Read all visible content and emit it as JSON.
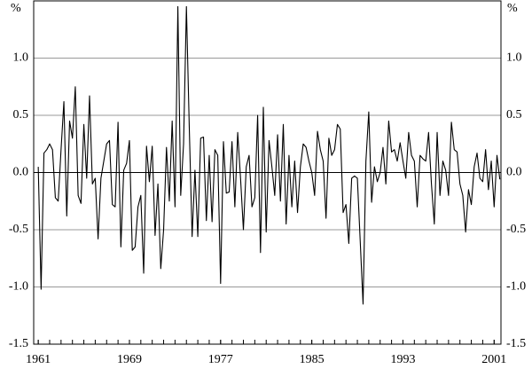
{
  "chart_data": {
    "type": "line",
    "y_unit": "%",
    "y2_unit": "%",
    "x": [
      1961,
      1961.25,
      1961.5,
      1961.75,
      1962,
      1962.25,
      1962.5,
      1962.75,
      1963,
      1963.25,
      1963.5,
      1963.75,
      1964,
      1964.25,
      1964.5,
      1964.75,
      1965,
      1965.25,
      1965.5,
      1965.75,
      1966,
      1966.25,
      1966.5,
      1966.75,
      1967,
      1967.25,
      1967.5,
      1967.75,
      1968,
      1968.25,
      1968.5,
      1968.75,
      1969,
      1969.25,
      1969.5,
      1969.75,
      1970,
      1970.25,
      1970.5,
      1970.75,
      1971,
      1971.25,
      1971.5,
      1971.75,
      1972,
      1972.25,
      1972.5,
      1972.75,
      1973,
      1973.25,
      1973.5,
      1973.75,
      1974,
      1974.25,
      1974.5,
      1974.75,
      1975,
      1975.25,
      1975.5,
      1975.75,
      1976,
      1976.25,
      1976.5,
      1976.75,
      1977,
      1977.25,
      1977.5,
      1977.75,
      1978,
      1978.25,
      1978.5,
      1978.75,
      1979,
      1979.25,
      1979.5,
      1979.75,
      1980,
      1980.25,
      1980.5,
      1980.75,
      1981,
      1981.25,
      1981.5,
      1981.75,
      1982,
      1982.25,
      1982.5,
      1982.75,
      1983,
      1983.25,
      1983.5,
      1983.75,
      1984,
      1984.25,
      1984.5,
      1984.75,
      1985,
      1985.25,
      1985.5,
      1985.75,
      1986,
      1986.25,
      1986.5,
      1986.75,
      1987,
      1987.25,
      1987.5,
      1987.75,
      1988,
      1988.25,
      1988.5,
      1988.75,
      1989,
      1989.25,
      1989.5,
      1989.75,
      1990,
      1990.25,
      1990.5,
      1990.75,
      1991,
      1991.25,
      1991.5,
      1991.75,
      1992,
      1992.25,
      1992.5,
      1992.75,
      1993,
      1993.25,
      1993.5,
      1993.75,
      1994,
      1994.25,
      1994.5,
      1994.75,
      1995,
      1995.25,
      1995.5,
      1995.75,
      1996,
      1996.25,
      1996.5,
      1996.75,
      1997,
      1997.25,
      1997.5,
      1997.75,
      1998,
      1998.25,
      1998.5,
      1998.75,
      1999,
      1999.25,
      1999.5,
      1999.75,
      2000,
      2000.25,
      2000.5,
      2000.75,
      2001,
      2001.25,
      2001.5
    ],
    "values": [
      0.05,
      -1.02,
      0.17,
      0.2,
      0.25,
      0.2,
      -0.22,
      -0.25,
      0.2,
      0.62,
      -0.38,
      0.45,
      0.3,
      0.75,
      -0.2,
      -0.27,
      0.42,
      -0.05,
      0.67,
      -0.1,
      -0.05,
      -0.58,
      -0.05,
      0.1,
      0.25,
      0.28,
      -0.28,
      -0.3,
      0.44,
      -0.65,
      0.02,
      0.08,
      0.28,
      -0.68,
      -0.65,
      -0.3,
      -0.2,
      -0.88,
      0.23,
      -0.08,
      0.23,
      -0.55,
      -0.1,
      -0.84,
      -0.5,
      0.22,
      -0.25,
      0.45,
      -0.3,
      1.45,
      -0.2,
      0.25,
      1.45,
      0.4,
      -0.56,
      0.02,
      -0.56,
      0.3,
      0.31,
      -0.42,
      0.15,
      -0.43,
      0.2,
      0.15,
      -0.97,
      0.27,
      -0.18,
      -0.17,
      0.27,
      -0.3,
      0.35,
      -0.05,
      -0.5,
      0.05,
      0.15,
      -0.3,
      -0.22,
      0.5,
      -0.7,
      0.57,
      -0.52,
      0.28,
      0.05,
      -0.2,
      0.33,
      -0.25,
      0.42,
      -0.45,
      0.15,
      -0.3,
      0.1,
      -0.35,
      0.05,
      0.25,
      0.22,
      0.1,
      0.0,
      -0.2,
      0.36,
      0.2,
      0.1,
      -0.4,
      0.3,
      0.15,
      0.2,
      0.42,
      0.38,
      -0.35,
      -0.28,
      -0.62,
      -0.05,
      -0.03,
      -0.05,
      -0.6,
      -1.15,
      0.1,
      0.53,
      -0.26,
      0.05,
      -0.08,
      0.0,
      0.22,
      -0.1,
      0.45,
      0.18,
      0.2,
      0.1,
      0.26,
      0.1,
      -0.05,
      0.35,
      0.15,
      0.1,
      -0.3,
      0.15,
      0.12,
      0.1,
      0.35,
      -0.1,
      -0.45,
      0.35,
      -0.2,
      0.1,
      0.02,
      -0.2,
      0.44,
      0.2,
      0.18,
      -0.1,
      -0.2,
      -0.52,
      -0.15,
      -0.28,
      0.05,
      0.17,
      -0.05,
      -0.08,
      0.2,
      -0.15,
      0.1,
      -0.3,
      0.15,
      -0.06
    ],
    "color": "#000000",
    "xlim": [
      1960.6,
      2001.6
    ],
    "xticks": [
      1961,
      1969,
      1977,
      1985,
      1993,
      2001
    ],
    "ylim": [
      -1.5,
      1.5
    ],
    "yticks": [
      -1.5,
      {
        "value": -1,
        "label": "-1.0"
      },
      -0.5,
      {
        "value": 0,
        "label": "0.0"
      },
      0.5,
      {
        "value": 1,
        "label": "1.0"
      }
    ],
    "y2lim": [
      -1.5,
      1.5
    ],
    "y2ticks": [
      -1.5,
      {
        "value": -1,
        "label": "-1.0"
      },
      -0.5,
      {
        "value": 0,
        "label": "0.0"
      },
      0.5,
      {
        "value": 1,
        "label": "1.0"
      }
    ],
    "grid": true
  }
}
